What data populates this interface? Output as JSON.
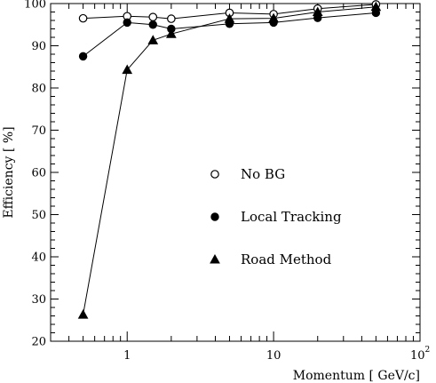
{
  "chart_data": {
    "type": "scatter",
    "xlabel": "Momentum [ GeV/c]",
    "ylabel": "Efficiency [ %]",
    "xscale": "log",
    "xlim": [
      0.3,
      100
    ],
    "ylim": [
      20,
      100
    ],
    "xticks": [
      {
        "value": 1,
        "label": "1"
      },
      {
        "value": 10,
        "label": "10"
      },
      {
        "value": 100,
        "label": "10",
        "sup": "2"
      }
    ],
    "yticks": [
      20,
      30,
      40,
      50,
      60,
      70,
      80,
      90,
      100
    ],
    "grid": false,
    "legend_position": "center-right",
    "series": [
      {
        "name": "No BG",
        "marker": "open-circle",
        "x": [
          0.5,
          1,
          1.5,
          2,
          5,
          10,
          20,
          50
        ],
        "y": [
          96.5,
          97,
          96.8,
          96.4,
          97.8,
          97.5,
          98.8,
          99.8
        ]
      },
      {
        "name": "Local Tracking",
        "marker": "filled-circle",
        "x": [
          0.5,
          1,
          1.5,
          2,
          5,
          10,
          20,
          50
        ],
        "y": [
          87.5,
          95.5,
          95,
          94,
          95.2,
          95.5,
          96.6,
          97.8
        ]
      },
      {
        "name": "Road Method",
        "marker": "filled-triangle",
        "x": [
          0.5,
          1,
          1.5,
          2,
          5,
          10,
          20,
          50
        ],
        "y": [
          26.3,
          84.3,
          91.3,
          92.8,
          96.4,
          96.5,
          98,
          99.2
        ]
      }
    ]
  }
}
